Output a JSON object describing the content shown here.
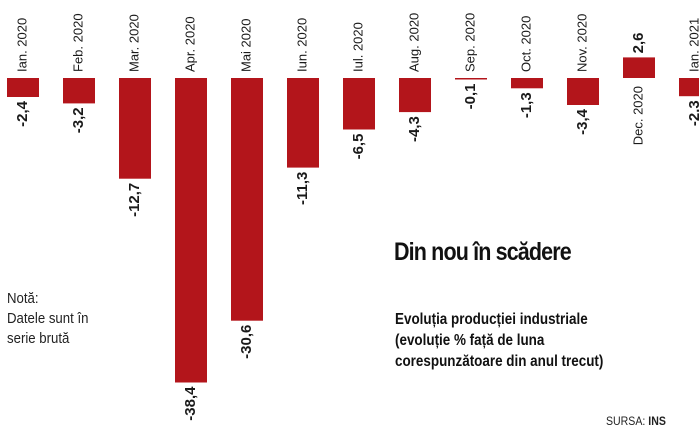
{
  "chart_data": {
    "type": "bar",
    "categories": [
      "Ian. 2020",
      "Feb. 2020",
      "Mar. 2020",
      "Apr. 2020",
      "Mai 2020",
      "Iun. 2020",
      "Iul. 2020",
      "Aug. 2020",
      "Sep. 2020",
      "Oct. 2020",
      "Nov. 2020",
      "Dec. 2020",
      "Ian. 2021"
    ],
    "values": [
      -2.4,
      -3.2,
      -12.7,
      -38.4,
      -30.6,
      -11.3,
      -6.5,
      -4.3,
      -0.1,
      -1.3,
      -3.4,
      2.6,
      -2.3
    ],
    "value_labels": [
      "-2,4",
      "-3,2",
      "-12,7",
      "-38,4",
      "-30,6",
      "-11,3",
      "-6,5",
      "-4,3",
      "-0,1",
      "-1,3",
      "-3,4",
      "2,6",
      "-2,3"
    ],
    "title": "Din nou în scădere",
    "subtitle_lines": [
      "Evoluția producției industriale",
      "(evoluție % față de luna",
      "corespunzătoare din anul trecut)"
    ],
    "note_lines": [
      "Notă:",
      "Datele sunt în",
      "serie brută"
    ],
    "source_label": "SURSA:",
    "source_name": "INS",
    "bar_color": "#b3151b",
    "ylim": [
      -38.4,
      2.6
    ],
    "grid": false,
    "legend": "none"
  }
}
